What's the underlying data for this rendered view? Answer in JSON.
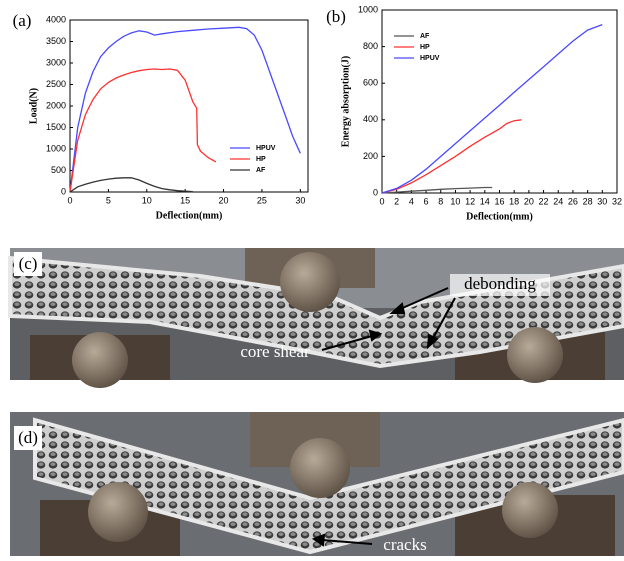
{
  "chart_data": [
    {
      "type": "line",
      "panel_label": "(a)",
      "xlabel": "Deflection(mm)",
      "ylabel": "Load(N)",
      "xlim": [
        0,
        31
      ],
      "xticks": [
        0,
        5,
        10,
        15,
        20,
        25,
        30
      ],
      "ylim": [
        0,
        4000
      ],
      "yticks": [
        0,
        500,
        1000,
        1500,
        2000,
        2500,
        3000,
        3500,
        4000
      ],
      "legend": "center right",
      "series": [
        {
          "name": "HPUV",
          "color": "#4a4aff",
          "x": [
            0,
            1,
            2,
            3,
            4,
            5,
            6,
            7,
            8,
            9,
            10,
            11,
            12,
            14,
            16,
            18,
            20,
            22,
            23,
            24,
            25,
            26,
            27,
            28,
            29,
            30
          ],
          "values": [
            0,
            1500,
            2300,
            2800,
            3150,
            3350,
            3500,
            3620,
            3700,
            3750,
            3720,
            3650,
            3680,
            3730,
            3760,
            3790,
            3810,
            3830,
            3800,
            3650,
            3300,
            2800,
            2300,
            1800,
            1300,
            900
          ]
        },
        {
          "name": "HP",
          "color": "#ff3030",
          "x": [
            0,
            1,
            2,
            3,
            4,
            5,
            6,
            7,
            8,
            9,
            10,
            11,
            12,
            13,
            14,
            15,
            16,
            16.5,
            16.6,
            17,
            18,
            19
          ],
          "values": [
            0,
            1200,
            1800,
            2150,
            2400,
            2550,
            2650,
            2720,
            2780,
            2820,
            2850,
            2860,
            2850,
            2860,
            2830,
            2600,
            2100,
            1950,
            1100,
            950,
            800,
            700
          ]
        },
        {
          "name": "AF",
          "color": "#333333",
          "x": [
            0,
            1,
            2,
            3,
            4,
            5,
            6,
            7,
            8,
            9,
            10,
            11,
            12,
            13,
            14,
            15,
            16
          ],
          "values": [
            0,
            120,
            180,
            230,
            270,
            300,
            320,
            330,
            330,
            280,
            200,
            130,
            80,
            50,
            30,
            20,
            10
          ]
        }
      ]
    },
    {
      "type": "line",
      "panel_label": "(b)",
      "xlabel": "Deflection(mm)",
      "ylabel": "Energy absorption(J)",
      "xlim": [
        0,
        32
      ],
      "xticks": [
        0,
        2,
        4,
        6,
        8,
        10,
        12,
        14,
        16,
        18,
        20,
        22,
        24,
        26,
        28,
        30,
        32
      ],
      "ylim": [
        0,
        1000
      ],
      "yticks": [
        0,
        200,
        400,
        600,
        800,
        1000
      ],
      "legend": "upper left",
      "series": [
        {
          "name": "AF",
          "color": "#555555",
          "x": [
            0,
            2,
            4,
            6,
            8,
            10,
            12,
            14,
            15
          ],
          "values": [
            0,
            5,
            10,
            15,
            20,
            24,
            27,
            30,
            30
          ]
        },
        {
          "name": "HP",
          "color": "#ff3030",
          "x": [
            0,
            2,
            4,
            6,
            8,
            10,
            12,
            14,
            16,
            17,
            18,
            19
          ],
          "values": [
            0,
            20,
            55,
            100,
            150,
            200,
            255,
            305,
            350,
            380,
            395,
            400
          ]
        },
        {
          "name": "HPUV",
          "color": "#4a4aff",
          "x": [
            0,
            2,
            4,
            6,
            8,
            10,
            12,
            14,
            16,
            18,
            20,
            22,
            24,
            26,
            28,
            30
          ],
          "values": [
            0,
            25,
            70,
            130,
            200,
            270,
            340,
            410,
            480,
            550,
            620,
            690,
            760,
            830,
            890,
            920
          ]
        }
      ]
    }
  ],
  "photos": [
    {
      "label": "(c)",
      "annotations": [
        "debonding",
        "core shear"
      ]
    },
    {
      "label": "(d)",
      "annotations": [
        "cracks"
      ]
    }
  ]
}
